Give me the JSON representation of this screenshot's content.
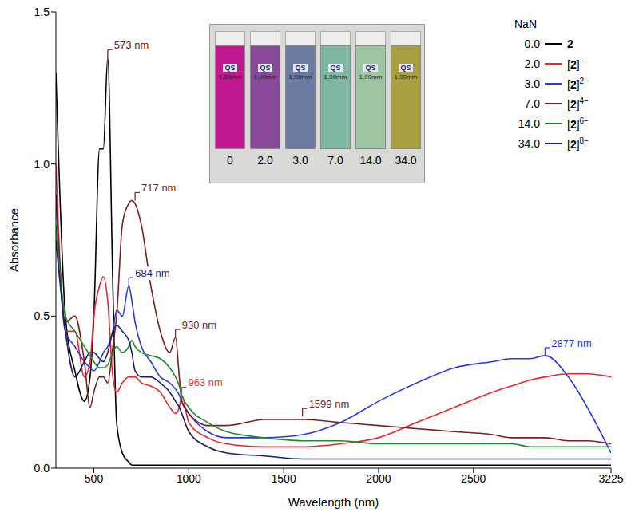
{
  "chart_data": {
    "type": "line",
    "x_label": "Wavelength (nm)",
    "y_label": "Absorbance",
    "x": [
      300,
      350,
      400,
      450,
      480,
      500,
      530,
      550,
      573,
      600,
      620,
      650,
      684,
      700,
      717,
      750,
      800,
      850,
      900,
      930,
      950,
      963,
      1000,
      1100,
      1200,
      1400,
      1600,
      1800,
      2000,
      2200,
      2400,
      2600,
      2700,
      2800,
      2877,
      3000,
      3100,
      3225
    ],
    "xlim": [
      300,
      3225
    ],
    "xticks": [
      500,
      1000,
      1500,
      2000,
      2500,
      3225
    ],
    "ylim": [
      0,
      1.5
    ],
    "yticks": [
      {
        "value": 0,
        "label": "0.0"
      },
      {
        "value": 0.5,
        "label": "0.5"
      },
      {
        "value": 1,
        "label": "1.0"
      },
      {
        "value": 1.5,
        "label": "1.5"
      }
    ],
    "legend_title": "NaN",
    "legend": "upper right",
    "series": [
      {
        "name": "2",
        "label": "0.0",
        "color": "#000000",
        "values": [
          1.3,
          0.5,
          0.32,
          0.22,
          0.3,
          0.5,
          1.05,
          1.05,
          1.35,
          0.6,
          0.15,
          0.05,
          0.02,
          0.01,
          0.01,
          0.01,
          0.01,
          0.01,
          0.01,
          0.01,
          0.01,
          0.01,
          0.01,
          0.01,
          0.01,
          0.01,
          0.01,
          0.01,
          0.01,
          0.01,
          0.01,
          0.01,
          0.01,
          0.01,
          0.01,
          0.01,
          0.01,
          0.01
        ]
      },
      {
        "name": "[2]−·",
        "label": "2.0",
        "color": "#e8262b",
        "values": [
          1.0,
          0.45,
          0.45,
          0.3,
          0.35,
          0.5,
          0.6,
          0.63,
          0.55,
          0.3,
          0.25,
          0.28,
          0.3,
          0.3,
          0.3,
          0.28,
          0.27,
          0.25,
          0.2,
          0.18,
          0.2,
          0.24,
          0.15,
          0.1,
          0.08,
          0.07,
          0.07,
          0.08,
          0.1,
          0.15,
          0.2,
          0.25,
          0.27,
          0.29,
          0.3,
          0.31,
          0.31,
          0.3
        ]
      },
      {
        "name": "[2]2−",
        "label": "3.0",
        "color": "#2a3ad8",
        "values": [
          0.9,
          0.45,
          0.4,
          0.35,
          0.33,
          0.32,
          0.35,
          0.38,
          0.4,
          0.45,
          0.52,
          0.5,
          0.6,
          0.55,
          0.48,
          0.4,
          0.35,
          0.3,
          0.28,
          0.26,
          0.24,
          0.22,
          0.18,
          0.12,
          0.1,
          0.1,
          0.11,
          0.15,
          0.22,
          0.28,
          0.33,
          0.35,
          0.36,
          0.36,
          0.37,
          0.3,
          0.2,
          0.05
        ]
      },
      {
        "name": "[2]4−",
        "label": "7.0",
        "color": "#7b1f1f",
        "values": [
          0.9,
          0.48,
          0.5,
          0.35,
          0.2,
          0.25,
          0.3,
          0.3,
          0.28,
          0.4,
          0.5,
          0.8,
          0.87,
          0.88,
          0.87,
          0.8,
          0.6,
          0.45,
          0.38,
          0.43,
          0.3,
          0.22,
          0.18,
          0.14,
          0.14,
          0.16,
          0.16,
          0.15,
          0.14,
          0.13,
          0.12,
          0.11,
          0.1,
          0.1,
          0.1,
          0.09,
          0.09,
          0.08
        ]
      },
      {
        "name": "[2]6−",
        "label": "14.0",
        "color": "#1e8c2a",
        "values": [
          0.8,
          0.5,
          0.45,
          0.4,
          0.37,
          0.35,
          0.33,
          0.33,
          0.34,
          0.38,
          0.4,
          0.38,
          0.4,
          0.42,
          0.4,
          0.38,
          0.37,
          0.36,
          0.33,
          0.3,
          0.27,
          0.24,
          0.2,
          0.15,
          0.12,
          0.1,
          0.09,
          0.09,
          0.08,
          0.08,
          0.08,
          0.08,
          0.08,
          0.07,
          0.07,
          0.07,
          0.07,
          0.07
        ]
      },
      {
        "name": "[2]8−",
        "label": "34.0",
        "color": "#1a1f6e",
        "values": [
          0.75,
          0.45,
          0.3,
          0.35,
          0.38,
          0.38,
          0.36,
          0.35,
          0.38,
          0.45,
          0.47,
          0.45,
          0.42,
          0.38,
          0.32,
          0.3,
          0.3,
          0.28,
          0.25,
          0.22,
          0.2,
          0.18,
          0.12,
          0.07,
          0.05,
          0.04,
          0.03,
          0.03,
          0.03,
          0.03,
          0.03,
          0.03,
          0.03,
          0.03,
          0.03,
          0.03,
          0.03,
          0.03
        ]
      }
    ],
    "annotations": [
      {
        "text": "573 nm",
        "x": 573,
        "y": 1.35,
        "color": "#5a1a1a"
      },
      {
        "text": "717 nm",
        "x": 717,
        "y": 0.88,
        "color": "#6b1e1e"
      },
      {
        "text": "684 nm",
        "x": 684,
        "y": 0.6,
        "color": "#1a237e"
      },
      {
        "text": "930 nm",
        "x": 930,
        "y": 0.43,
        "color": "#6b1e1e"
      },
      {
        "text": "963 nm",
        "x": 963,
        "y": 0.24,
        "color": "#e53935"
      },
      {
        "text": "1599 nm",
        "x": 1599,
        "y": 0.17,
        "color": "#6b1e1e"
      },
      {
        "text": "2877 nm",
        "x": 2877,
        "y": 0.37,
        "color": "#1f3fd6"
      }
    ],
    "inset": {
      "labels": [
        "0",
        "2.0",
        "3.0",
        "7.0",
        "14.0",
        "34.0"
      ],
      "colors": [
        "#c2188f",
        "#8a4a9a",
        "#6a7aa0",
        "#7fb8a0",
        "#9fc6a4",
        "#a8a040"
      ],
      "vial_text": [
        "QS",
        "1,00mm"
      ]
    }
  }
}
